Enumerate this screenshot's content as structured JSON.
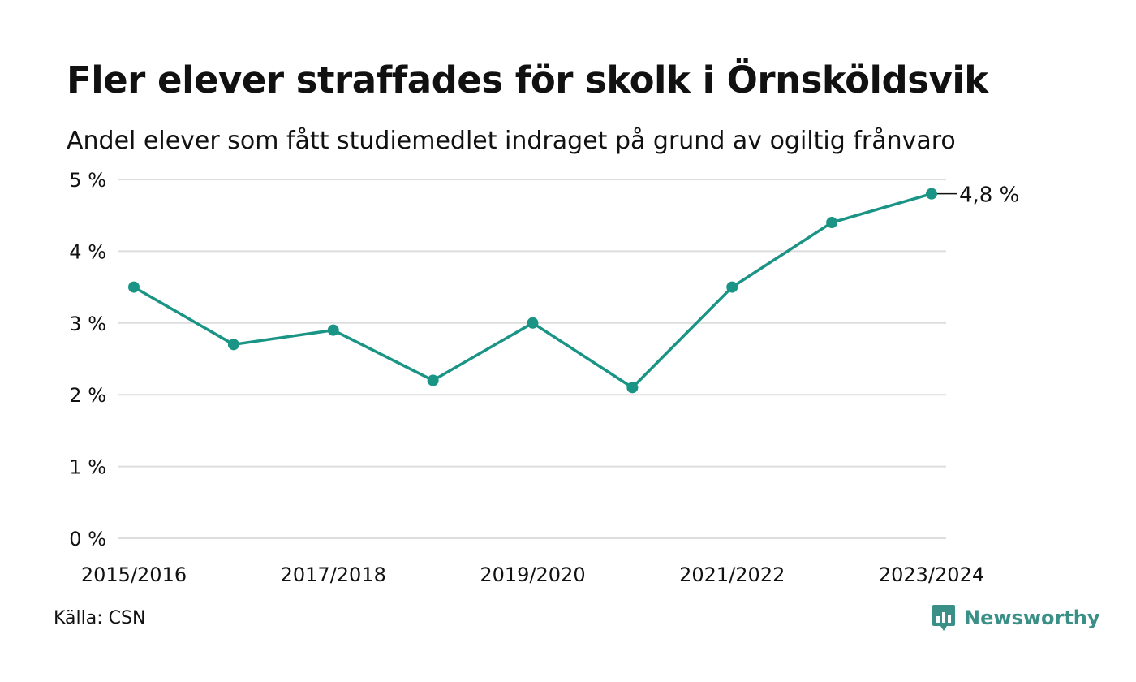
{
  "header": {
    "title": "Fler elever straffades för skolk i Örnsköldsvik",
    "subtitle": "Andel elever som fått studiemedlet indraget på grund av ogiltig frånvaro"
  },
  "footer": {
    "source": "Källa: CSN",
    "brand": "Newsworthy",
    "brand_icon": "newsworthy-logo-icon"
  },
  "colors": {
    "line": "#1a9485",
    "grid": "#dddddd",
    "text": "#111111",
    "brand": "#3a8f86"
  },
  "chart_data": {
    "type": "line",
    "x": [
      "2015/2016",
      "2016/2017",
      "2017/2018",
      "2018/2019",
      "2019/2020",
      "2020/2021",
      "2021/2022",
      "2022/2023",
      "2023/2024"
    ],
    "x_tick_labels": [
      "2015/2016",
      "",
      "2017/2018",
      "",
      "2019/2020",
      "",
      "2021/2022",
      "",
      "2023/2024"
    ],
    "series": [
      {
        "values": [
          3.5,
          2.7,
          2.9,
          2.2,
          3.0,
          2.1,
          3.5,
          4.4,
          4.8
        ]
      }
    ],
    "y_ticks": [
      0,
      1,
      2,
      3,
      4,
      5
    ],
    "y_tick_labels": [
      "0 %",
      "1 %",
      "2 %",
      "3 %",
      "4 %",
      "5 %"
    ],
    "ylim": [
      0,
      5
    ],
    "grid": true,
    "end_label": "4,8 %"
  }
}
